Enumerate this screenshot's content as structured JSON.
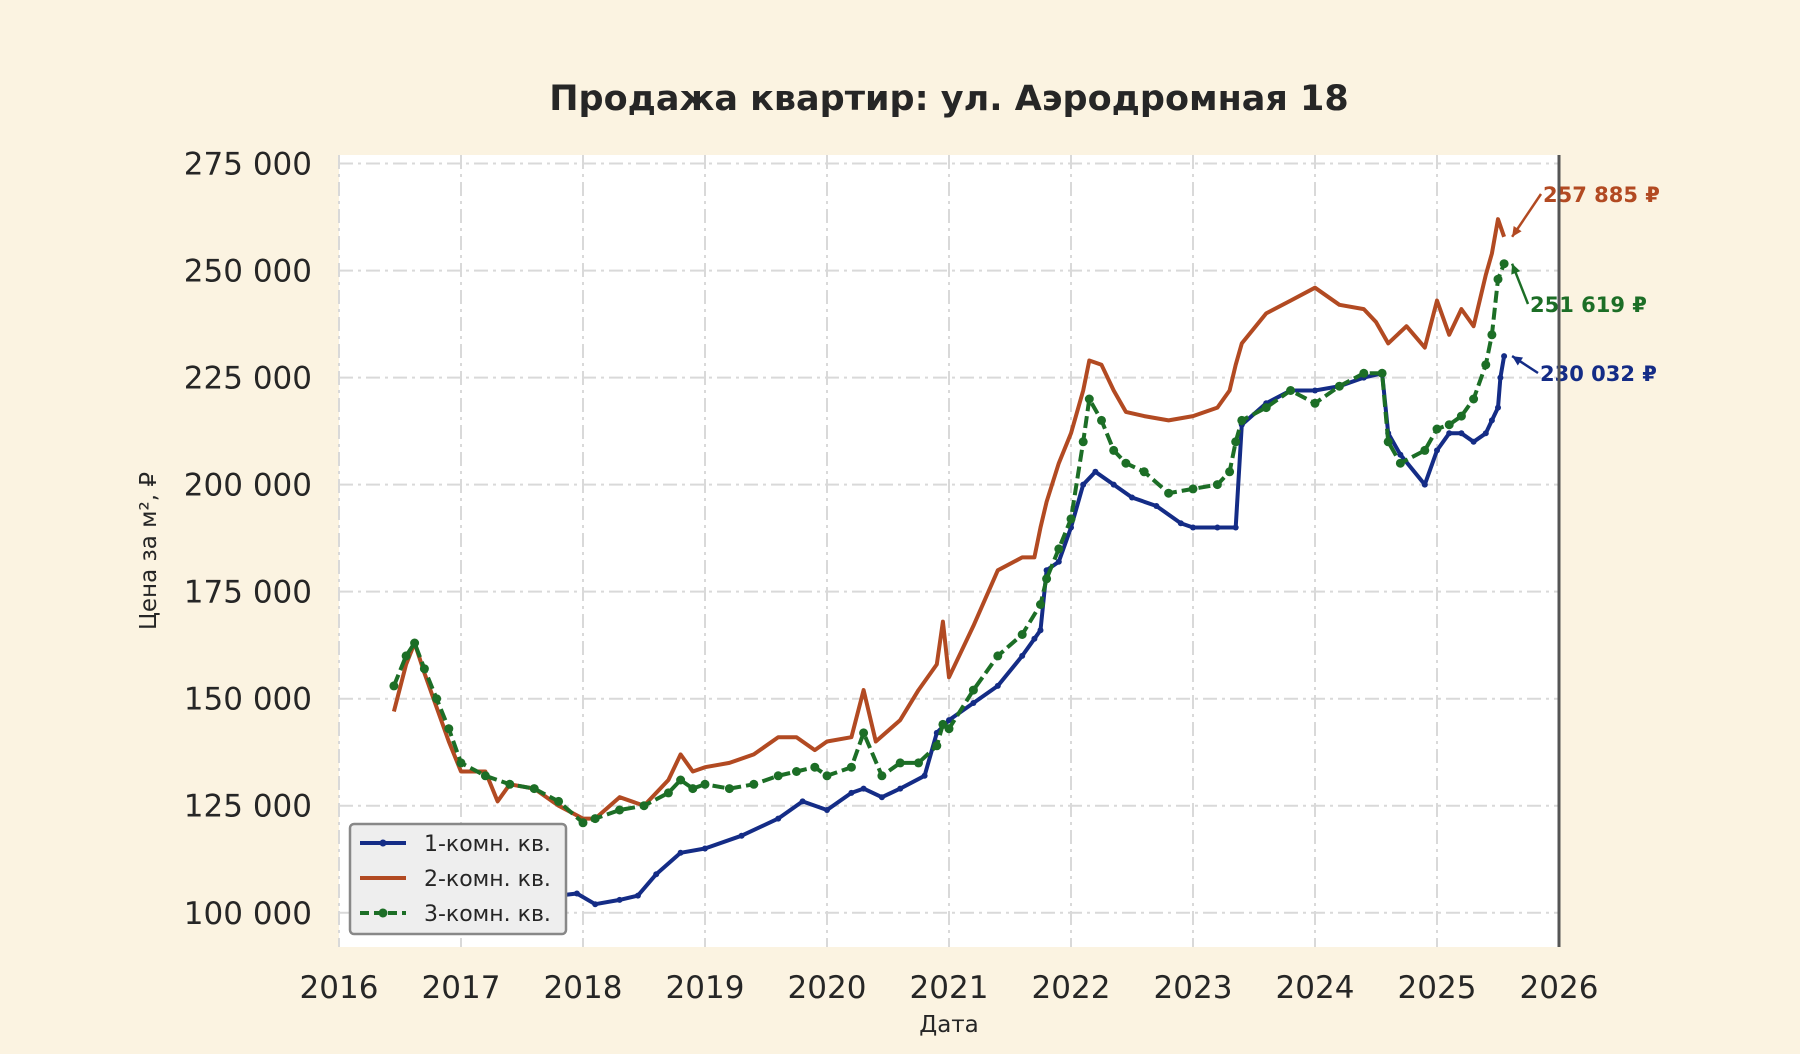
{
  "chart_data": {
    "type": "line",
    "title": "Продажа квартир: ул. Аэродромная 18",
    "xlabel": "Дата",
    "ylabel": "Цена за м², ₽",
    "xlim": [
      2016.0,
      2026.0
    ],
    "ylim": [
      92000,
      277000
    ],
    "x_ticks": [
      "2016",
      "2017",
      "2018",
      "2019",
      "2020",
      "2021",
      "2022",
      "2023",
      "2024",
      "2025",
      "2026"
    ],
    "y_ticks": [
      "100 000",
      "125 000",
      "150 000",
      "175 000",
      "200 000",
      "225 000",
      "250 000",
      "275 000"
    ],
    "grid": true,
    "legend_position": "lower-left",
    "series": [
      {
        "name": "1-комн. кв.",
        "color": "#142c86",
        "style": "solid-markers",
        "last_label": "230 032 ₽",
        "x": [
          2016.45,
          2016.6,
          2016.8,
          2017.0,
          2017.2,
          2017.4,
          2017.6,
          2017.8,
          2017.95,
          2018.1,
          2018.3,
          2018.45,
          2018.6,
          2018.8,
          2019.0,
          2019.3,
          2019.6,
          2019.8,
          2020.0,
          2020.2,
          2020.3,
          2020.45,
          2020.6,
          2020.8,
          2020.9,
          2021.0,
          2021.2,
          2021.4,
          2021.6,
          2021.7,
          2021.75,
          2021.8,
          2021.9,
          2022.0,
          2022.1,
          2022.2,
          2022.35,
          2022.5,
          2022.7,
          2022.9,
          2023.0,
          2023.2,
          2023.35,
          2023.4,
          2023.6,
          2023.8,
          2024.0,
          2024.2,
          2024.4,
          2024.55,
          2024.6,
          2024.7,
          2024.9,
          2025.0,
          2025.1,
          2025.2,
          2025.3,
          2025.4,
          2025.45,
          2025.5,
          2025.52,
          2025.55
        ],
        "values": [
          116000,
          117000,
          115000,
          113000,
          111000,
          109000,
          107000,
          104000,
          104500,
          102000,
          103000,
          104000,
          109000,
          114000,
          115000,
          118000,
          122000,
          126000,
          124000,
          128000,
          129000,
          127000,
          129000,
          132000,
          142000,
          145000,
          149000,
          153000,
          160000,
          164000,
          166000,
          180000,
          182000,
          190000,
          200000,
          203000,
          200000,
          197000,
          195000,
          191000,
          190000,
          190000,
          190000,
          214000,
          219000,
          222000,
          222000,
          223000,
          225000,
          226000,
          212000,
          207000,
          200000,
          208000,
          212000,
          212000,
          210000,
          212000,
          215000,
          218000,
          225000,
          230032
        ]
      },
      {
        "name": "2-комн. кв.",
        "color": "#b24a22",
        "style": "solid",
        "last_label": "257 885 ₽",
        "x": [
          2016.45,
          2016.55,
          2016.62,
          2016.7,
          2016.8,
          2016.9,
          2017.0,
          2017.2,
          2017.3,
          2017.4,
          2017.6,
          2017.8,
          2018.0,
          2018.1,
          2018.3,
          2018.5,
          2018.7,
          2018.8,
          2018.9,
          2019.0,
          2019.2,
          2019.4,
          2019.6,
          2019.75,
          2019.9,
          2020.0,
          2020.2,
          2020.3,
          2020.4,
          2020.6,
          2020.75,
          2020.9,
          2020.95,
          2021.0,
          2021.2,
          2021.4,
          2021.6,
          2021.7,
          2021.75,
          2021.8,
          2021.9,
          2022.0,
          2022.1,
          2022.15,
          2022.25,
          2022.35,
          2022.45,
          2022.6,
          2022.8,
          2023.0,
          2023.2,
          2023.3,
          2023.35,
          2023.4,
          2023.6,
          2023.8,
          2024.0,
          2024.2,
          2024.4,
          2024.5,
          2024.6,
          2024.75,
          2024.9,
          2025.0,
          2025.1,
          2025.2,
          2025.3,
          2025.35,
          2025.4,
          2025.45,
          2025.5,
          2025.55
        ],
        "values": [
          147000,
          158000,
          163000,
          156000,
          148000,
          140000,
          133000,
          133000,
          126000,
          130000,
          129000,
          125000,
          122000,
          122000,
          127000,
          125000,
          131000,
          137000,
          133000,
          134000,
          135000,
          137000,
          141000,
          141000,
          138000,
          140000,
          141000,
          152000,
          140000,
          145000,
          152000,
          158000,
          168000,
          155000,
          167000,
          180000,
          183000,
          183000,
          190000,
          196000,
          205000,
          212000,
          222000,
          229000,
          228000,
          222000,
          217000,
          216000,
          215000,
          216000,
          218000,
          222000,
          228000,
          233000,
          240000,
          243000,
          246000,
          242000,
          241000,
          238000,
          233000,
          237000,
          232000,
          243000,
          235000,
          241000,
          237000,
          243000,
          249000,
          254000,
          262000,
          257885
        ]
      },
      {
        "name": "3-комн. кв.",
        "color": "#1c6e26",
        "style": "dashed-markers",
        "last_label": "251 619 ₽",
        "x": [
          2016.45,
          2016.55,
          2016.62,
          2016.7,
          2016.8,
          2016.9,
          2017.0,
          2017.2,
          2017.4,
          2017.6,
          2017.8,
          2018.0,
          2018.1,
          2018.3,
          2018.5,
          2018.7,
          2018.8,
          2018.9,
          2019.0,
          2019.2,
          2019.4,
          2019.6,
          2019.75,
          2019.9,
          2020.0,
          2020.2,
          2020.3,
          2020.45,
          2020.6,
          2020.75,
          2020.9,
          2020.95,
          2021.0,
          2021.2,
          2021.4,
          2021.6,
          2021.75,
          2021.8,
          2021.9,
          2022.0,
          2022.1,
          2022.15,
          2022.25,
          2022.35,
          2022.45,
          2022.6,
          2022.8,
          2023.0,
          2023.2,
          2023.3,
          2023.35,
          2023.4,
          2023.6,
          2023.8,
          2024.0,
          2024.2,
          2024.4,
          2024.55,
          2024.6,
          2024.7,
          2024.9,
          2025.0,
          2025.1,
          2025.2,
          2025.3,
          2025.4,
          2025.45,
          2025.5,
          2025.55
        ],
        "values": [
          153000,
          160000,
          163000,
          157000,
          150000,
          143000,
          135000,
          132000,
          130000,
          129000,
          126000,
          121000,
          122000,
          124000,
          125000,
          128000,
          131000,
          129000,
          130000,
          129000,
          130000,
          132000,
          133000,
          134000,
          132000,
          134000,
          142000,
          132000,
          135000,
          135000,
          139000,
          144000,
          143000,
          152000,
          160000,
          165000,
          172000,
          178000,
          185000,
          192000,
          210000,
          220000,
          215000,
          208000,
          205000,
          203000,
          198000,
          199000,
          200000,
          203000,
          210000,
          215000,
          218000,
          222000,
          219000,
          223000,
          226000,
          226000,
          210000,
          205000,
          208000,
          213000,
          214000,
          216000,
          220000,
          228000,
          235000,
          248000,
          251619
        ]
      }
    ]
  }
}
